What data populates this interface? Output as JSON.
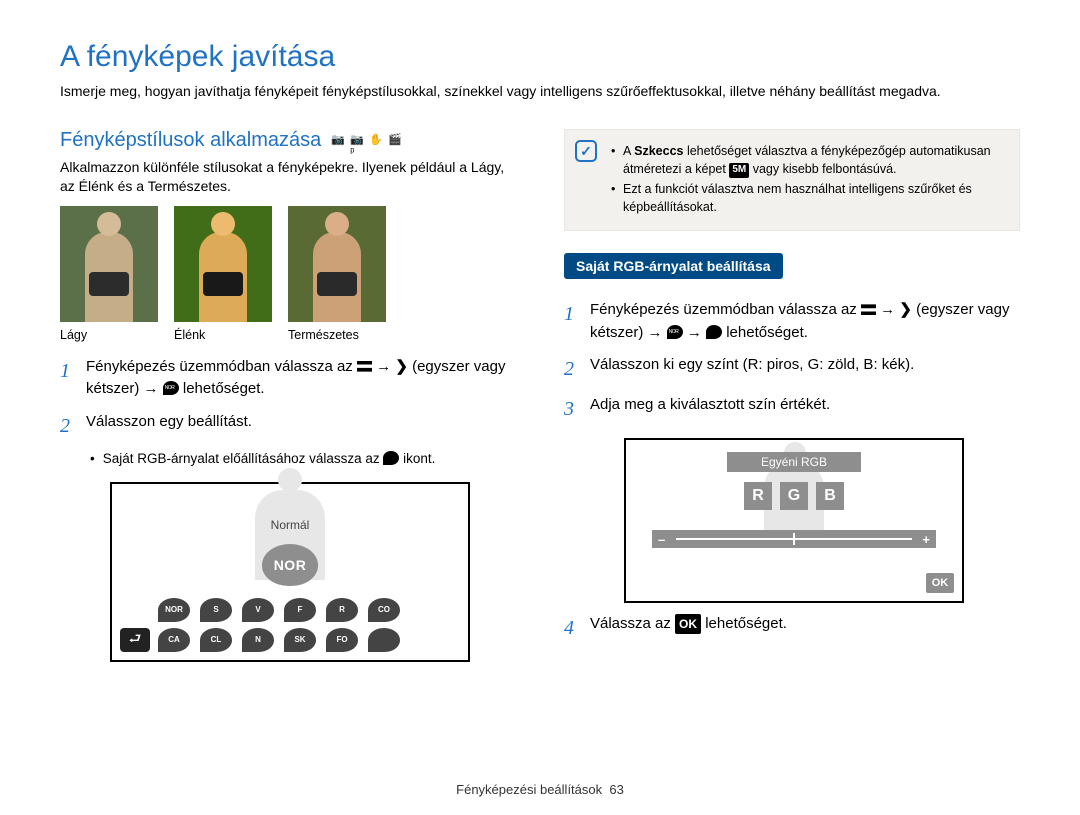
{
  "page": {
    "title": "A fényképek javítása",
    "intro": "Ismerje meg, hogyan javíthatja fényképeit fényképstílusokkal, színekkel vagy intelligens szűrőeffektusokkal, illetve néhány beállítást megadva."
  },
  "left": {
    "section_title": "Fényképstílusok alkalmazása",
    "mode_icons": [
      "📷",
      "📷ᵖ",
      "✋",
      "🎬"
    ],
    "body": "Alkalmazzon különféle stílusokat a fényképekre. Ilyenek például a Lágy, az Élénk és a Természetes.",
    "thumbs": {
      "captions": [
        "Lágy",
        "Élénk",
        "Természetes"
      ]
    },
    "step1_a": "Fényképezés üzemmódban válassza az ",
    "step1_b": " (egyszer vagy kétszer) → ",
    "step1_c": " lehetőséget.",
    "arrow": "→",
    "step2": "Válasszon egy beállítást.",
    "bullet_a": "Saját RGB-árnyalat előállításához válassza az ",
    "bullet_b": " ikont.",
    "screen": {
      "label": "Normál",
      "nor": "NOR",
      "row1": [
        "NOR",
        "S",
        "V",
        "F",
        "R",
        "CO"
      ],
      "row2": [
        "CA",
        "CL",
        "N",
        "SK",
        "FO",
        ""
      ],
      "back": "⮐"
    }
  },
  "right": {
    "note": {
      "badge": "✓",
      "li1_a": "A ",
      "li1_bold": "Szkeccs",
      "li1_b": " lehetőséget választva a fényképezőgép automatikusan átméretezi a képet ",
      "li1_badge": "5M",
      "li1_c": " vagy kisebb felbontásúvá.",
      "li2": "Ezt a funkciót választva nem használhat intelligens szűrőket és képbeállításokat."
    },
    "pill": "Saját RGB-árnyalat beállítása",
    "step1_a": "Fényképezés üzemmódban válassza az ",
    "step1_b": " (egyszer vagy kétszer) → ",
    "step1_c": " → ",
    "step1_d": " lehetőséget.",
    "arrow": "→",
    "step2": "Válasszon ki egy színt (R: piros, G: zöld, B: kék).",
    "step3": "Adja meg a kiválasztott szín értékét.",
    "screen": {
      "title": "Egyéni RGB",
      "chips": [
        "R",
        "G",
        "B"
      ],
      "minus": "–",
      "plus": "+",
      "ok": "OK"
    },
    "step4_a": "Válassza az ",
    "step4_ok": "OK",
    "step4_b": " lehetőséget."
  },
  "footer": {
    "text": "Fényképezési beállítások",
    "page": "63"
  },
  "colors": {
    "accent": "#1f72c4",
    "pill_bg": "#004a86",
    "note_bg": "#f2f1ed",
    "grey": "#8e8e8e",
    "thumb_bg": "#556b3f"
  }
}
